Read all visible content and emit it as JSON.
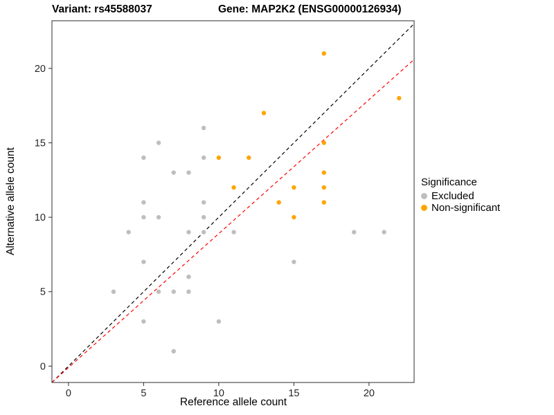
{
  "titles": {
    "left": "Variant: rs45588037",
    "right": "Gene: MAP2K2 (ENSG00000126934)"
  },
  "legend": {
    "title": "Significance"
  },
  "chart_data": {
    "type": "scatter",
    "xlabel": "Reference allele count",
    "ylabel": "Alternative allele count",
    "xlim": [
      -1.1,
      23.0
    ],
    "ylim": [
      -1.1,
      23.2
    ],
    "xticks": [
      0,
      5,
      10,
      15,
      20
    ],
    "yticks": [
      0,
      5,
      10,
      15,
      20
    ],
    "grid": false,
    "legend_position": "right",
    "series": [
      {
        "name": "Excluded",
        "color": "#BEBEBE",
        "points": [
          [
            3,
            5
          ],
          [
            4,
            9
          ],
          [
            5,
            3
          ],
          [
            5,
            7
          ],
          [
            5,
            10
          ],
          [
            5,
            11
          ],
          [
            5,
            14
          ],
          [
            6,
            5
          ],
          [
            6,
            10
          ],
          [
            6,
            15
          ],
          [
            7,
            1
          ],
          [
            7,
            5
          ],
          [
            7,
            13
          ],
          [
            8,
            5
          ],
          [
            8,
            6
          ],
          [
            8,
            9
          ],
          [
            8,
            13
          ],
          [
            9,
            9
          ],
          [
            9,
            10
          ],
          [
            9,
            11
          ],
          [
            9,
            14
          ],
          [
            9,
            16
          ],
          [
            10,
            3
          ],
          [
            11,
            9
          ],
          [
            15,
            7
          ],
          [
            19,
            9
          ],
          [
            21,
            9
          ]
        ]
      },
      {
        "name": "Non-significant",
        "color": "#FFA500",
        "points": [
          [
            10,
            14
          ],
          [
            11,
            12
          ],
          [
            12,
            14
          ],
          [
            13,
            17
          ],
          [
            14,
            11
          ],
          [
            15,
            10
          ],
          [
            15,
            12
          ],
          [
            17,
            11
          ],
          [
            17,
            12
          ],
          [
            17,
            13
          ],
          [
            17,
            15
          ],
          [
            17,
            21
          ],
          [
            22,
            18
          ]
        ]
      }
    ],
    "lines": [
      {
        "name": "identity",
        "slope": 1.0,
        "intercept": 0.0,
        "color": "#000000",
        "style": "dashed"
      },
      {
        "name": "fitted-ratio",
        "slope": 0.9,
        "intercept": -0.1,
        "color": "#FF0000",
        "style": "dashed"
      }
    ]
  }
}
